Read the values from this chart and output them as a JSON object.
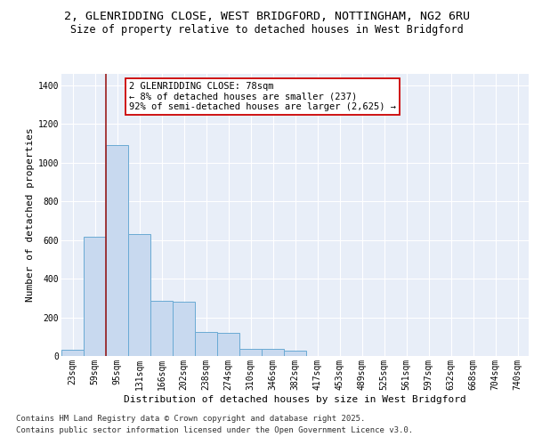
{
  "title_line1": "2, GLENRIDDING CLOSE, WEST BRIDGFORD, NOTTINGHAM, NG2 6RU",
  "title_line2": "Size of property relative to detached houses in West Bridgford",
  "xlabel": "Distribution of detached houses by size in West Bridgford",
  "ylabel": "Number of detached properties",
  "categories": [
    "23sqm",
    "59sqm",
    "95sqm",
    "131sqm",
    "166sqm",
    "202sqm",
    "238sqm",
    "274sqm",
    "310sqm",
    "346sqm",
    "382sqm",
    "417sqm",
    "453sqm",
    "489sqm",
    "525sqm",
    "561sqm",
    "597sqm",
    "632sqm",
    "668sqm",
    "704sqm",
    "740sqm"
  ],
  "values": [
    30,
    618,
    1090,
    632,
    283,
    280,
    125,
    118,
    35,
    35,
    28,
    0,
    0,
    0,
    0,
    0,
    0,
    0,
    0,
    0,
    0
  ],
  "bar_color": "#c8d9ef",
  "bar_edge_color": "#6aaad4",
  "vline_x": 1.5,
  "vline_color": "#9b1c1c",
  "annotation_text": "2 GLENRIDDING CLOSE: 78sqm\n← 8% of detached houses are smaller (237)\n92% of semi-detached houses are larger (2,625) →",
  "annotation_box_color": "#ffffff",
  "annotation_box_edge_color": "#cc0000",
  "ylim": [
    0,
    1460
  ],
  "yticks": [
    0,
    200,
    400,
    600,
    800,
    1000,
    1200,
    1400
  ],
  "background_color": "#e8eef8",
  "footer_line1": "Contains HM Land Registry data © Crown copyright and database right 2025.",
  "footer_line2": "Contains public sector information licensed under the Open Government Licence v3.0.",
  "title_fontsize": 9.5,
  "subtitle_fontsize": 8.5,
  "axis_label_fontsize": 8,
  "tick_fontsize": 7,
  "annotation_fontsize": 7.5,
  "footer_fontsize": 6.5
}
